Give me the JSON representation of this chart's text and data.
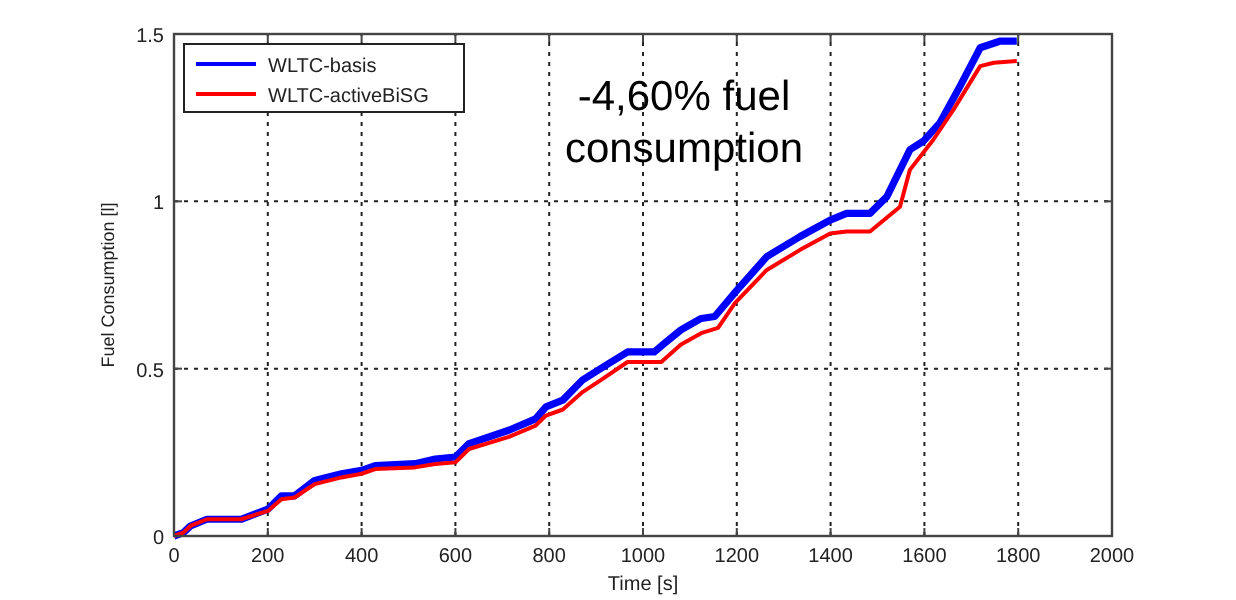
{
  "chart_data": {
    "type": "line",
    "xlabel": "Time [s]",
    "ylabel": "Fuel Consumption [l]",
    "annotations": [
      "-4,60% fuel consumption"
    ],
    "xlim": [
      0,
      2000
    ],
    "xticks": [
      0,
      200,
      400,
      600,
      800,
      1000,
      1200,
      1400,
      1600,
      1800,
      2000
    ],
    "ylim": [
      0,
      1.5
    ],
    "yticks": [
      0,
      0.5,
      1,
      1.5
    ],
    "grid": true,
    "legend": "top left",
    "line_style": "solid",
    "marker": "none",
    "series": [
      {
        "name": "WLTC-basis",
        "color": "#0000ff",
        "x": [
          0,
          20,
          35,
          70,
          143,
          200,
          229,
          257,
          300,
          357,
          400,
          429,
          514,
          557,
          600,
          629,
          714,
          771,
          793,
          829,
          871,
          921,
          967,
          1024,
          1046,
          1081,
          1124,
          1153,
          1200,
          1264,
          1335,
          1399,
          1434,
          1484,
          1520,
          1569,
          1598,
          1633,
          1676,
          1719,
          1762,
          1797
        ],
        "values": [
          0,
          0.01,
          0.03,
          0.05,
          0.05,
          0.08,
          0.12,
          0.12,
          0.166,
          0.186,
          0.196,
          0.21,
          0.216,
          0.23,
          0.236,
          0.276,
          0.316,
          0.35,
          0.386,
          0.406,
          0.466,
          0.51,
          0.55,
          0.55,
          0.576,
          0.616,
          0.65,
          0.656,
          0.734,
          0.835,
          0.895,
          0.944,
          0.964,
          0.964,
          1.014,
          1.154,
          1.18,
          1.234,
          1.344,
          1.459,
          1.479,
          1.479
        ]
      },
      {
        "name": "WLTC-activeBiSG",
        "color": "#ff0000",
        "x": [
          0,
          20,
          35,
          70,
          143,
          200,
          229,
          257,
          300,
          357,
          400,
          429,
          514,
          557,
          600,
          629,
          714,
          771,
          793,
          829,
          871,
          910,
          967,
          1039,
          1081,
          1124,
          1160,
          1196,
          1264,
          1335,
          1399,
          1434,
          1484,
          1548,
          1569,
          1619,
          1662,
          1719,
          1748,
          1797
        ],
        "values": [
          0,
          0.01,
          0.03,
          0.05,
          0.05,
          0.075,
          0.11,
          0.115,
          0.155,
          0.175,
          0.186,
          0.2,
          0.205,
          0.215,
          0.22,
          0.26,
          0.296,
          0.33,
          0.36,
          0.378,
          0.43,
          0.466,
          0.52,
          0.52,
          0.572,
          0.606,
          0.622,
          0.696,
          0.795,
          0.855,
          0.904,
          0.91,
          0.91,
          0.984,
          1.094,
          1.184,
          1.274,
          1.404,
          1.414,
          1.419
        ]
      }
    ]
  }
}
